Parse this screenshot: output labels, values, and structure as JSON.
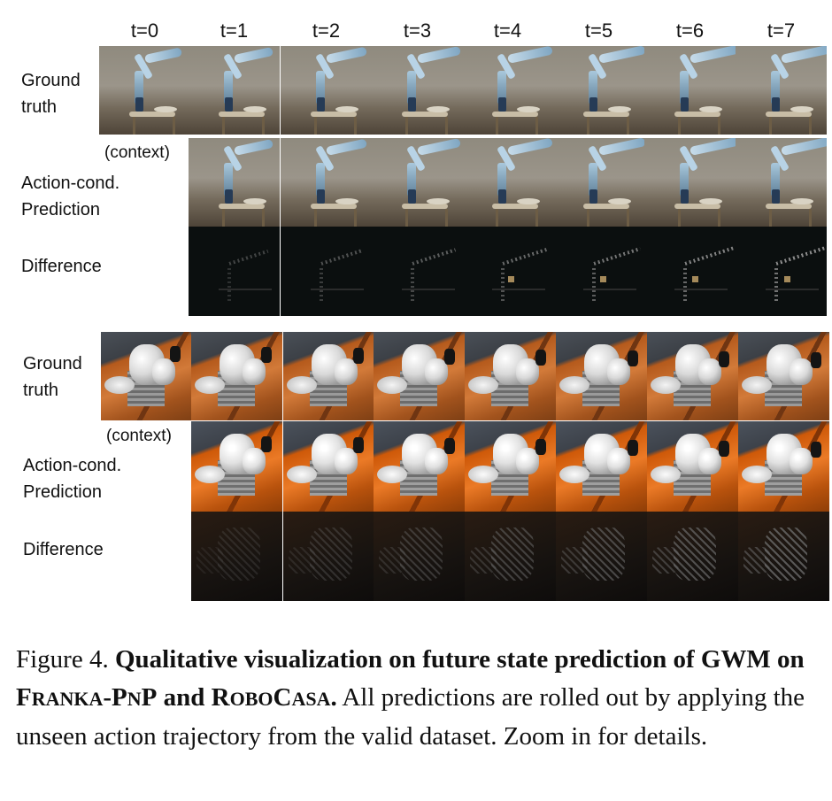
{
  "time_labels": [
    "t=0",
    "t=1",
    "t=2",
    "t=3",
    "t=4",
    "t=5",
    "t=6",
    "t=7"
  ],
  "blocks": [
    {
      "rows": [
        {
          "label_lines": [
            "Ground",
            "truth"
          ]
        },
        {
          "context_label": "(context)",
          "label_lines": [
            "Action-cond.",
            "Prediction"
          ]
        },
        {
          "label_lines": [
            "Difference"
          ]
        }
      ]
    },
    {
      "rows": [
        {
          "label_lines": [
            "Ground",
            "truth"
          ]
        },
        {
          "context_label": "(context)",
          "label_lines": [
            "Action-cond.",
            "Prediction"
          ]
        },
        {
          "label_lines": [
            "Difference"
          ]
        }
      ]
    }
  ],
  "caption": {
    "prefix": "Figure 4. ",
    "bold_1": "Qualitative visualization on future state prediction of GWM on ",
    "dataset_1_part_1": "F",
    "dataset_1_part_2": "RANKA",
    "dataset_1_part_3": "-P",
    "dataset_1_part_4": "N",
    "dataset_1_part_5": "P",
    "bold_and": " and ",
    "dataset_2_part_1": "R",
    "dataset_2_part_2": "OBO",
    "dataset_2_part_3": "C",
    "dataset_2_part_4": "ASA",
    "bold_end": ".",
    "rest": " All predictions are rolled out by applying the unseen action trajectory from the valid dataset. Zoom in for details."
  }
}
